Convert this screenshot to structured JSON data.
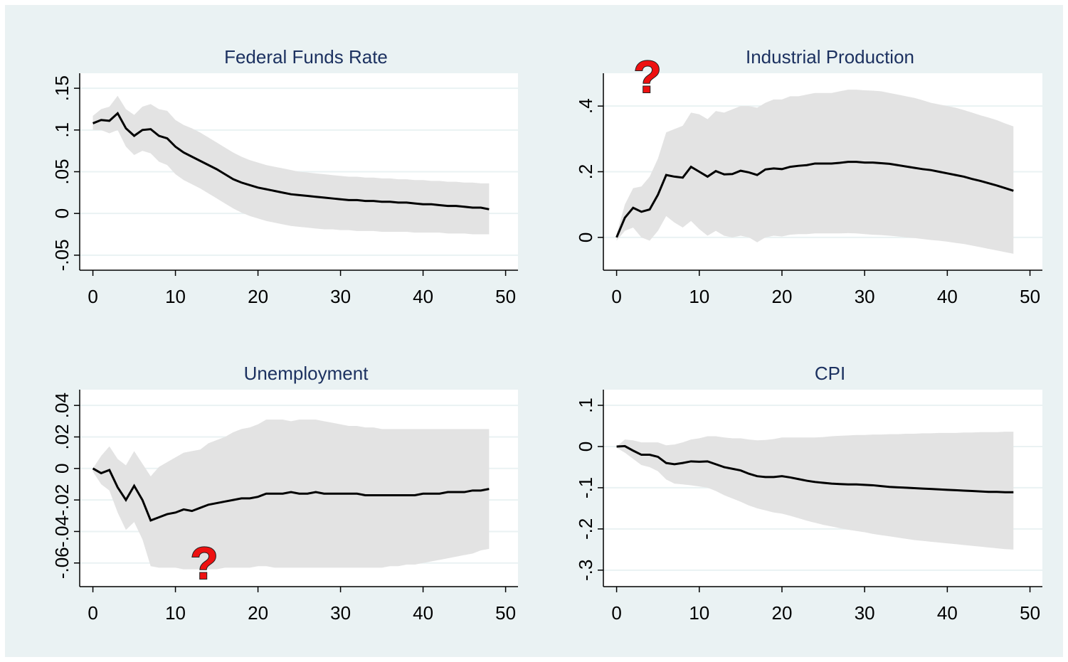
{
  "chart_data": [
    {
      "type": "line",
      "title": "Federal Funds Rate",
      "color": "#000000",
      "band_color": "#e3e3e3",
      "grid": true,
      "x": [
        0,
        1,
        2,
        3,
        4,
        5,
        6,
        7,
        8,
        9,
        10,
        11,
        12,
        13,
        14,
        15,
        16,
        17,
        18,
        19,
        20,
        21,
        22,
        23,
        24,
        25,
        26,
        27,
        28,
        29,
        30,
        31,
        32,
        33,
        34,
        35,
        36,
        37,
        38,
        39,
        40,
        41,
        42,
        43,
        44,
        45,
        46,
        47,
        48
      ],
      "values": [
        0.108,
        0.112,
        0.111,
        0.12,
        0.102,
        0.093,
        0.1,
        0.101,
        0.093,
        0.09,
        0.08,
        0.073,
        0.068,
        0.063,
        0.058,
        0.053,
        0.047,
        0.041,
        0.037,
        0.034,
        0.031,
        0.029,
        0.027,
        0.025,
        0.023,
        0.022,
        0.021,
        0.02,
        0.019,
        0.018,
        0.017,
        0.016,
        0.016,
        0.015,
        0.015,
        0.014,
        0.014,
        0.013,
        0.013,
        0.012,
        0.011,
        0.011,
        0.01,
        0.009,
        0.009,
        0.008,
        0.007,
        0.007,
        0.005
      ],
      "upper": [
        0.117,
        0.125,
        0.128,
        0.141,
        0.125,
        0.118,
        0.128,
        0.131,
        0.125,
        0.123,
        0.112,
        0.106,
        0.102,
        0.097,
        0.091,
        0.085,
        0.079,
        0.073,
        0.068,
        0.064,
        0.061,
        0.058,
        0.056,
        0.054,
        0.052,
        0.05,
        0.049,
        0.048,
        0.047,
        0.046,
        0.045,
        0.044,
        0.044,
        0.043,
        0.043,
        0.042,
        0.042,
        0.041,
        0.041,
        0.04,
        0.04,
        0.039,
        0.039,
        0.038,
        0.038,
        0.037,
        0.037,
        0.036,
        0.036
      ],
      "lower": [
        0.1,
        0.1,
        0.096,
        0.1,
        0.08,
        0.07,
        0.075,
        0.072,
        0.062,
        0.058,
        0.047,
        0.04,
        0.035,
        0.03,
        0.024,
        0.018,
        0.012,
        0.006,
        0.001,
        -0.003,
        -0.006,
        -0.009,
        -0.011,
        -0.013,
        -0.015,
        -0.016,
        -0.017,
        -0.018,
        -0.019,
        -0.019,
        -0.02,
        -0.02,
        -0.021,
        -0.021,
        -0.021,
        -0.022,
        -0.022,
        -0.022,
        -0.022,
        -0.023,
        -0.023,
        -0.023,
        -0.023,
        -0.024,
        -0.024,
        -0.024,
        -0.025,
        -0.025,
        -0.025
      ],
      "xlim": [
        -1.6,
        51.5
      ],
      "xticks": [
        0,
        10,
        20,
        30,
        40,
        50
      ],
      "ylim": [
        -0.068,
        0.168
      ],
      "yticks": [
        {
          "value": -0.05,
          "label": "-.05"
        },
        0,
        {
          "value": 0.05,
          "label": ".05"
        },
        {
          "value": 0.1,
          "label": ".1"
        },
        {
          "value": 0.15,
          "label": ".15"
        }
      ]
    },
    {
      "type": "line",
      "title": "Industrial Production",
      "color": "#000000",
      "band_color": "#e3e3e3",
      "grid": true,
      "annotation": "?",
      "x": [
        0,
        1,
        2,
        3,
        4,
        5,
        6,
        7,
        8,
        9,
        10,
        11,
        12,
        13,
        14,
        15,
        16,
        17,
        18,
        19,
        20,
        21,
        22,
        23,
        24,
        25,
        26,
        27,
        28,
        29,
        30,
        31,
        32,
        33,
        34,
        35,
        36,
        37,
        38,
        39,
        40,
        41,
        42,
        43,
        44,
        45,
        46,
        47,
        48
      ],
      "values": [
        0,
        0.06,
        0.09,
        0.078,
        0.085,
        0.13,
        0.19,
        0.185,
        0.182,
        0.215,
        0.2,
        0.185,
        0.202,
        0.192,
        0.193,
        0.203,
        0.198,
        0.19,
        0.207,
        0.21,
        0.208,
        0.215,
        0.218,
        0.22,
        0.225,
        0.225,
        0.225,
        0.227,
        0.23,
        0.23,
        0.228,
        0.228,
        0.226,
        0.224,
        0.22,
        0.216,
        0.212,
        0.208,
        0.205,
        0.2,
        0.195,
        0.19,
        0.185,
        0.178,
        0.172,
        0.165,
        0.158,
        0.15,
        0.142
      ],
      "upper": [
        0.01,
        0.1,
        0.15,
        0.155,
        0.185,
        0.24,
        0.32,
        0.33,
        0.34,
        0.38,
        0.375,
        0.36,
        0.385,
        0.38,
        0.39,
        0.4,
        0.4,
        0.395,
        0.41,
        0.42,
        0.42,
        0.43,
        0.43,
        0.435,
        0.44,
        0.44,
        0.44,
        0.445,
        0.45,
        0.45,
        0.448,
        0.447,
        0.445,
        0.44,
        0.435,
        0.43,
        0.425,
        0.418,
        0.41,
        0.405,
        0.4,
        0.395,
        0.388,
        0.38,
        0.372,
        0.365,
        0.357,
        0.347,
        0.338
      ],
      "lower": [
        -0.01,
        0.02,
        0.03,
        0,
        -0.01,
        0.02,
        0.065,
        0.045,
        0.03,
        0.05,
        0.025,
        0.005,
        0.02,
        0.005,
        0,
        0.005,
        0,
        -0.015,
        0,
        0.005,
        0.003,
        0.008,
        0.01,
        0.01,
        0.012,
        0.012,
        0.012,
        0.012,
        0.013,
        0.012,
        0.01,
        0.008,
        0.007,
        0.005,
        0.003,
        0,
        -0.002,
        -0.005,
        -0.008,
        -0.01,
        -0.013,
        -0.017,
        -0.02,
        -0.025,
        -0.03,
        -0.035,
        -0.04,
        -0.045,
        -0.05
      ],
      "xlim": [
        -1.6,
        51.5
      ],
      "xticks": [
        0,
        10,
        20,
        30,
        40,
        50
      ],
      "ylim": [
        -0.1,
        0.5
      ],
      "yticks": [
        0,
        {
          "value": 0.2,
          "label": ".2"
        },
        {
          "value": 0.4,
          "label": ".4"
        }
      ]
    },
    {
      "type": "line",
      "title": "Unemployment",
      "color": "#000000",
      "band_color": "#e3e3e3",
      "grid": true,
      "annotation": "?",
      "x": [
        0,
        1,
        2,
        3,
        4,
        5,
        6,
        7,
        8,
        9,
        10,
        11,
        12,
        13,
        14,
        15,
        16,
        17,
        18,
        19,
        20,
        21,
        22,
        23,
        24,
        25,
        26,
        27,
        28,
        29,
        30,
        31,
        32,
        33,
        34,
        35,
        36,
        37,
        38,
        39,
        40,
        41,
        42,
        43,
        44,
        45,
        46,
        47,
        48
      ],
      "values": [
        0,
        -0.003,
        -0.001,
        -0.012,
        -0.02,
        -0.011,
        -0.02,
        -0.033,
        -0.031,
        -0.029,
        -0.028,
        -0.026,
        -0.027,
        -0.025,
        -0.023,
        -0.022,
        -0.021,
        -0.02,
        -0.019,
        -0.019,
        -0.018,
        -0.016,
        -0.016,
        -0.016,
        -0.015,
        -0.016,
        -0.016,
        -0.015,
        -0.016,
        -0.016,
        -0.016,
        -0.016,
        -0.016,
        -0.017,
        -0.017,
        -0.017,
        -0.017,
        -0.017,
        -0.017,
        -0.017,
        -0.016,
        -0.016,
        -0.016,
        -0.015,
        -0.015,
        -0.015,
        -0.014,
        -0.014,
        -0.013
      ],
      "upper": [
        0,
        0.008,
        0.014,
        0.006,
        0.002,
        0.011,
        0.003,
        -0.005,
        0.001,
        0.004,
        0.007,
        0.01,
        0.011,
        0.012,
        0.016,
        0.018,
        0.02,
        0.023,
        0.025,
        0.026,
        0.028,
        0.031,
        0.031,
        0.031,
        0.03,
        0.031,
        0.031,
        0.031,
        0.03,
        0.029,
        0.028,
        0.027,
        0.027,
        0.026,
        0.026,
        0.025,
        0.025,
        0.025,
        0.025,
        0.025,
        0.025,
        0.025,
        0.025,
        0.025,
        0.025,
        0.025,
        0.025,
        0.025,
        0.025
      ],
      "lower": [
        -0.002,
        -0.01,
        -0.014,
        -0.028,
        -0.039,
        -0.034,
        -0.045,
        -0.062,
        -0.063,
        -0.063,
        -0.063,
        -0.064,
        -0.064,
        -0.064,
        -0.064,
        -0.064,
        -0.063,
        -0.063,
        -0.063,
        -0.063,
        -0.062,
        -0.062,
        -0.063,
        -0.063,
        -0.063,
        -0.063,
        -0.063,
        -0.063,
        -0.063,
        -0.063,
        -0.063,
        -0.063,
        -0.063,
        -0.063,
        -0.063,
        -0.063,
        -0.062,
        -0.062,
        -0.061,
        -0.061,
        -0.06,
        -0.059,
        -0.058,
        -0.057,
        -0.056,
        -0.055,
        -0.054,
        -0.052,
        -0.051
      ],
      "xlim": [
        -1.6,
        51.5
      ],
      "xticks": [
        0,
        10,
        20,
        30,
        40,
        50
      ],
      "ylim": [
        -0.075,
        0.05
      ],
      "yticks": [
        {
          "value": -0.06,
          "label": "-.06"
        },
        {
          "value": -0.04,
          "label": "-.04"
        },
        {
          "value": -0.02,
          "label": "-.02"
        },
        0,
        {
          "value": 0.02,
          "label": ".02"
        },
        {
          "value": 0.04,
          "label": ".04"
        }
      ]
    },
    {
      "type": "line",
      "title": "CPI",
      "color": "#000000",
      "band_color": "#e3e3e3",
      "grid": true,
      "x": [
        0,
        1,
        2,
        3,
        4,
        5,
        6,
        7,
        8,
        9,
        10,
        11,
        12,
        13,
        14,
        15,
        16,
        17,
        18,
        19,
        20,
        21,
        22,
        23,
        24,
        25,
        26,
        27,
        28,
        29,
        30,
        31,
        32,
        33,
        34,
        35,
        36,
        37,
        38,
        39,
        40,
        41,
        42,
        43,
        44,
        45,
        46,
        47,
        48
      ],
      "values": [
        0,
        0.001,
        -0.01,
        -0.02,
        -0.02,
        -0.025,
        -0.04,
        -0.043,
        -0.04,
        -0.036,
        -0.037,
        -0.036,
        -0.043,
        -0.05,
        -0.054,
        -0.058,
        -0.066,
        -0.072,
        -0.074,
        -0.074,
        -0.072,
        -0.075,
        -0.079,
        -0.083,
        -0.086,
        -0.088,
        -0.09,
        -0.091,
        -0.092,
        -0.092,
        -0.093,
        -0.094,
        -0.096,
        -0.098,
        -0.099,
        -0.1,
        -0.101,
        -0.102,
        -0.103,
        -0.104,
        -0.105,
        -0.106,
        -0.107,
        -0.108,
        -0.109,
        -0.11,
        -0.11,
        -0.111,
        -0.111
      ],
      "upper": [
        0,
        0.017,
        0.015,
        0.01,
        0.01,
        0.01,
        0.003,
        0.005,
        0.01,
        0.017,
        0.02,
        0.025,
        0.025,
        0.022,
        0.02,
        0.02,
        0.017,
        0.015,
        0.016,
        0.018,
        0.022,
        0.022,
        0.022,
        0.022,
        0.022,
        0.023,
        0.025,
        0.026,
        0.027,
        0.028,
        0.028,
        0.029,
        0.029,
        0.03,
        0.03,
        0.031,
        0.031,
        0.032,
        0.032,
        0.033,
        0.033,
        0.033,
        0.034,
        0.034,
        0.035,
        0.035,
        0.035,
        0.036,
        0.036
      ],
      "lower": [
        -0.003,
        -0.015,
        -0.03,
        -0.045,
        -0.05,
        -0.06,
        -0.08,
        -0.09,
        -0.092,
        -0.094,
        -0.097,
        -0.1,
        -0.108,
        -0.118,
        -0.126,
        -0.134,
        -0.143,
        -0.15,
        -0.155,
        -0.16,
        -0.163,
        -0.168,
        -0.174,
        -0.18,
        -0.185,
        -0.19,
        -0.194,
        -0.198,
        -0.202,
        -0.205,
        -0.208,
        -0.212,
        -0.215,
        -0.218,
        -0.221,
        -0.224,
        -0.227,
        -0.229,
        -0.231,
        -0.233,
        -0.235,
        -0.237,
        -0.239,
        -0.241,
        -0.243,
        -0.245,
        -0.247,
        -0.249,
        -0.25
      ],
      "xlim": [
        -1.6,
        51.5
      ],
      "xticks": [
        0,
        10,
        20,
        30,
        40,
        50
      ],
      "ylim": [
        -0.34,
        0.138
      ],
      "yticks": [
        {
          "value": -0.3,
          "label": "-.3"
        },
        {
          "value": -0.2,
          "label": "-.2"
        },
        {
          "value": -0.1,
          "label": "-.1"
        },
        0,
        {
          "value": 0.1,
          "label": ".1"
        }
      ]
    }
  ]
}
